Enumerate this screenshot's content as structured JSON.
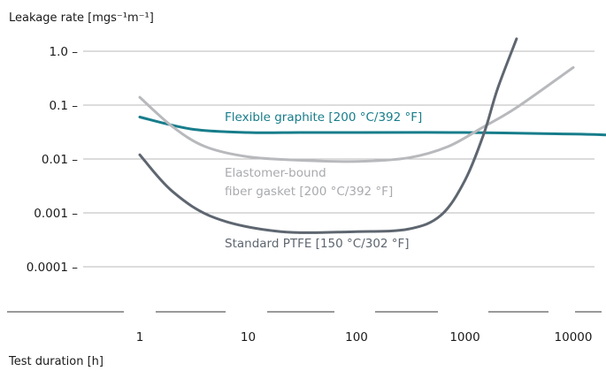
{
  "chart_data": {
    "type": "line",
    "ylabel": "Leakage rate [mgs⁻¹m⁻¹]",
    "xlabel": "Test duration [h]",
    "x_scale": "log",
    "y_scale": "log",
    "xlim": [
      0.1,
      20000
    ],
    "ylim": [
      0.0001,
      1.0
    ],
    "x_ticks": [
      {
        "value": 1,
        "label": "1"
      },
      {
        "value": 10,
        "label": "10"
      },
      {
        "value": 100,
        "label": "100"
      },
      {
        "value": 1000,
        "label": "1000"
      },
      {
        "value": 10000,
        "label": "10000"
      }
    ],
    "y_ticks": [
      {
        "value": 1.0,
        "label": "1.0"
      },
      {
        "value": 0.1,
        "label": "0.1"
      },
      {
        "value": 0.01,
        "label": "0.01"
      },
      {
        "value": 0.001,
        "label": "0.001"
      },
      {
        "value": 0.0001,
        "label": "0.0001"
      }
    ],
    "grid": true,
    "series": [
      {
        "name": "Flexible graphite [200 °C/392 °F]",
        "color": "#177d8b",
        "points": [
          [
            1,
            0.06
          ],
          [
            3,
            0.036
          ],
          [
            10,
            0.031
          ],
          [
            30,
            0.031
          ],
          [
            100,
            0.031
          ],
          [
            1000,
            0.031
          ],
          [
            10000,
            0.029
          ],
          [
            20000,
            0.028
          ]
        ]
      },
      {
        "name": "Elastomer-bound fiber gasket [200 °C/392 °F]",
        "color": "#b8b9bd",
        "points": [
          [
            1,
            0.14
          ],
          [
            2,
            0.04
          ],
          [
            4,
            0.017
          ],
          [
            10,
            0.011
          ],
          [
            30,
            0.0095
          ],
          [
            100,
            0.009
          ],
          [
            300,
            0.0105
          ],
          [
            700,
            0.017
          ],
          [
            1500,
            0.04
          ],
          [
            3000,
            0.09
          ],
          [
            10000,
            0.5
          ]
        ]
      },
      {
        "name": "Standard PTFE [150 °C/302 °F]",
        "color": "#5e6670",
        "points": [
          [
            1,
            0.012
          ],
          [
            2,
            0.0025
          ],
          [
            5,
            0.0008
          ],
          [
            20,
            0.00045
          ],
          [
            100,
            0.00045
          ],
          [
            300,
            0.0005
          ],
          [
            600,
            0.0009
          ],
          [
            1000,
            0.004
          ],
          [
            1500,
            0.03
          ],
          [
            2000,
            0.2
          ],
          [
            3000,
            1.7
          ]
        ]
      }
    ]
  }
}
